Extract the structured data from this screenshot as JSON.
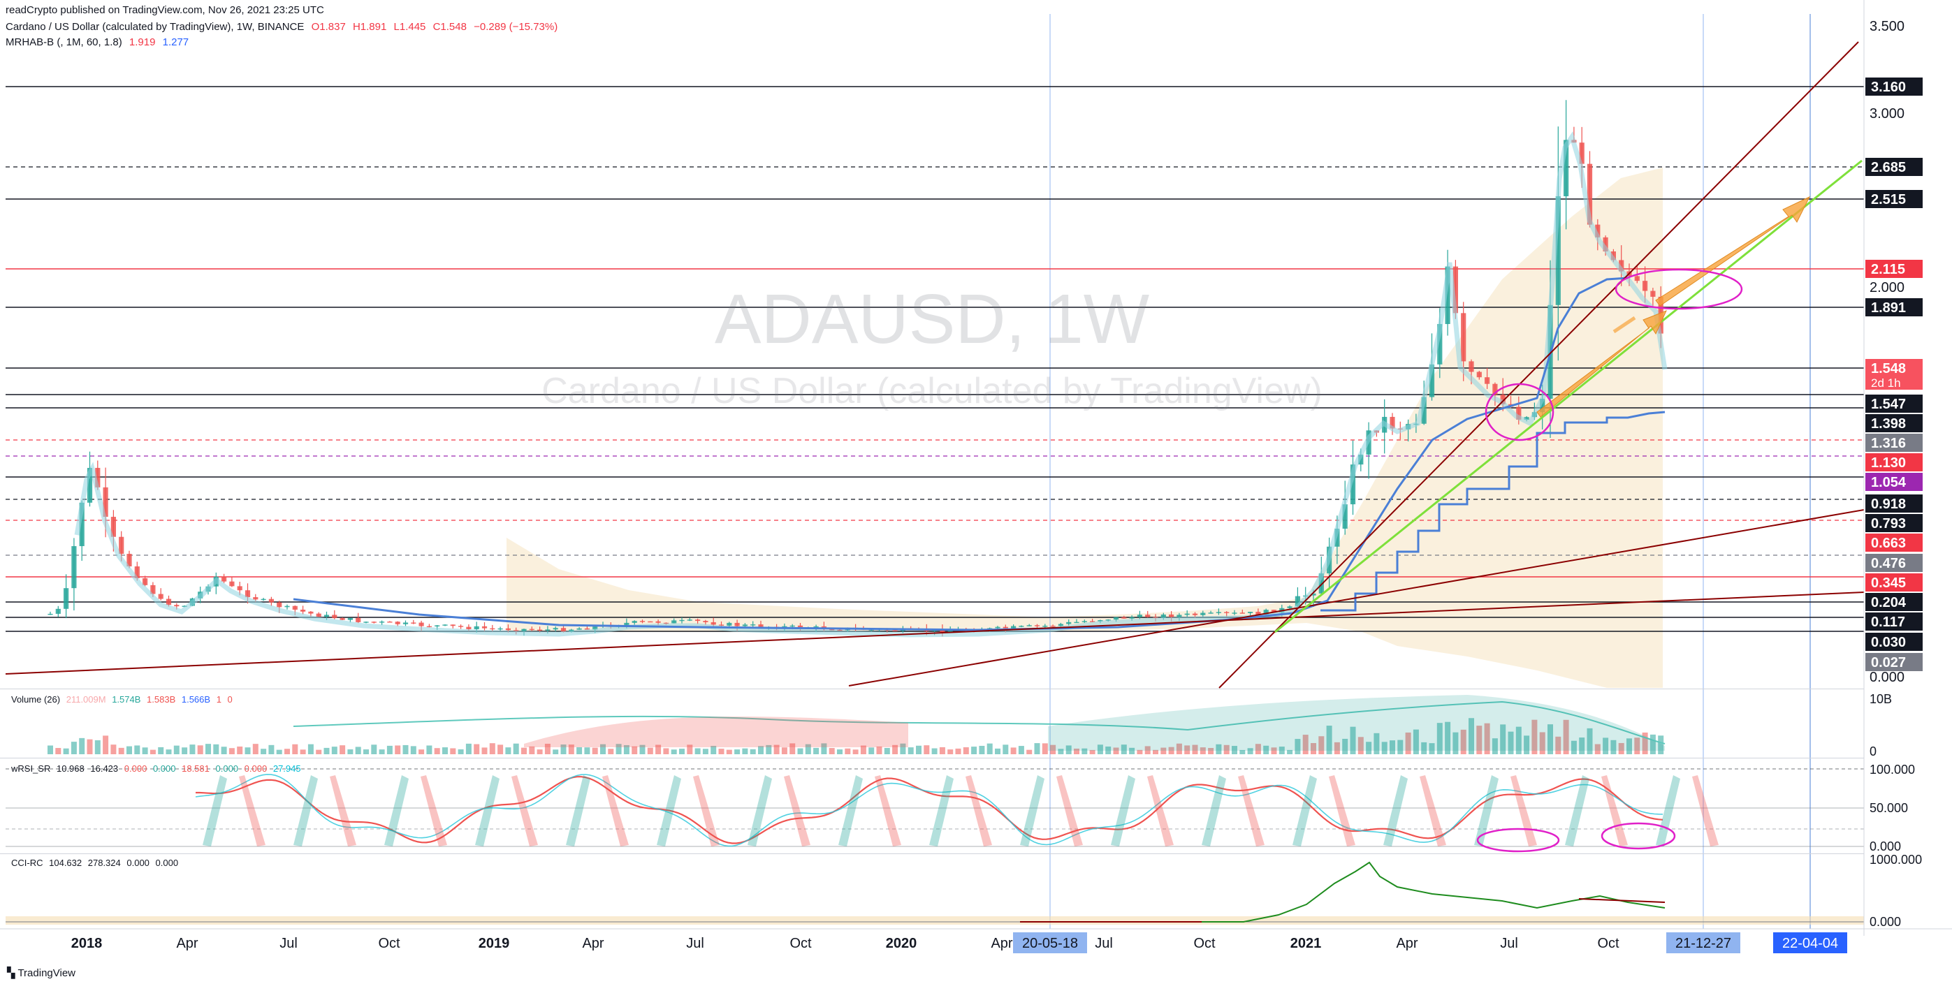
{
  "header": {
    "published": "readCrypto published on TradingView.com, Nov 26, 2021 23:25 UTC",
    "symbol_line": "Cardano / US Dollar (calculated by TradingView), 1W, BINANCE",
    "ohlc": {
      "o": "O1.837",
      "h": "H1.891",
      "l": "L1.445",
      "c": "C1.548",
      "chg": "−0.289 (−15.73%)"
    },
    "indicator": "MRHAB-B (, 1M, 60, 1.8)",
    "indicator_vals": [
      "1.919",
      "1.277"
    ]
  },
  "watermark": {
    "symbol": "ADAUSD, 1W",
    "name": "Cardano / US Dollar (calculated by TradingView)"
  },
  "price_axis": {
    "ticks": [
      "3.500",
      "3.000",
      "2.000",
      "0.000"
    ],
    "labels": [
      {
        "v": "3.160",
        "bg": "#131722",
        "fg": "#ffffff"
      },
      {
        "v": "2.685",
        "bg": "#131722",
        "fg": "#ffffff"
      },
      {
        "v": "2.515",
        "bg": "#131722",
        "fg": "#ffffff"
      },
      {
        "v": "2.115",
        "bg": "#f23645",
        "fg": "#ffffff"
      },
      {
        "v": "1.891",
        "bg": "#131722",
        "fg": "#ffffff"
      },
      {
        "v": "1.548",
        "sub": "2d 1h",
        "bg": "#f7525f",
        "fg": "#ffffff"
      },
      {
        "v": "1.547",
        "bg": "#131722",
        "fg": "#ffffff"
      },
      {
        "v": "1.398",
        "bg": "#131722",
        "fg": "#ffffff"
      },
      {
        "v": "1.316",
        "bg": "#787b86",
        "fg": "#ffffff"
      },
      {
        "v": "1.130",
        "bg": "#f23645",
        "fg": "#ffffff"
      },
      {
        "v": "1.054",
        "bg": "#9c27b0",
        "fg": "#ffffff"
      },
      {
        "v": "0.918",
        "bg": "#131722",
        "fg": "#ffffff"
      },
      {
        "v": "0.793",
        "bg": "#131722",
        "fg": "#ffffff"
      },
      {
        "v": "0.663",
        "bg": "#f23645",
        "fg": "#ffffff"
      },
      {
        "v": "0.476",
        "bg": "#787b86",
        "fg": "#ffffff"
      },
      {
        "v": "0.345",
        "bg": "#f23645",
        "fg": "#ffffff"
      },
      {
        "v": "0.204",
        "bg": "#131722",
        "fg": "#ffffff"
      },
      {
        "v": "0.117",
        "bg": "#131722",
        "fg": "#ffffff"
      },
      {
        "v": "0.030",
        "bg": "#131722",
        "fg": "#ffffff"
      },
      {
        "v": "0.027",
        "bg": "#787b86",
        "fg": "#ffffff"
      }
    ]
  },
  "time_axis": {
    "ticks": [
      "2018",
      "Apr",
      "Jul",
      "Oct",
      "2019",
      "Apr",
      "Jul",
      "Oct",
      "2020",
      "Apr",
      "Jul",
      "Oct",
      "2021",
      "Apr",
      "Jul",
      "Oct"
    ],
    "bold": [
      "2018",
      "2019",
      "2020",
      "2021"
    ],
    "markers": [
      "20-05-18",
      "21-12-27",
      "22-04-04"
    ]
  },
  "volume_pane": {
    "label": "Volume (26)",
    "vals": [
      "211.009M",
      "1.574B",
      "1.583B",
      "1.566B",
      "1",
      "0"
    ],
    "axis": [
      "10B",
      "0"
    ]
  },
  "rsi_pane": {
    "label": "wRSI_SR",
    "vals": [
      "10.968",
      "16.423",
      "0.000",
      "0.000",
      "18.581",
      "0.000",
      "0.000",
      "27.945"
    ],
    "axis": [
      "100.000",
      "50.000",
      "0.000"
    ]
  },
  "cci_pane": {
    "label": "CCI-RC",
    "vals": [
      "104.632",
      "278.324",
      "0.000",
      "0.000"
    ],
    "axis": [
      "1000.000",
      "0.000"
    ]
  },
  "footer": {
    "logo": "TradingView"
  },
  "colors": {
    "up": "#26a69a",
    "down": "#ef5350",
    "ha_up": "#8fd3e0",
    "ha_down": "#f4a582",
    "band": "#f5deb3",
    "green_line": "#7ee03a",
    "dark_red": "#8b0000",
    "blue": "#4a7fd6",
    "orange": "#f7a23b",
    "magenta": "#e020c8"
  },
  "chart_data": {
    "type": "candlestick",
    "title": "ADAUSD, 1W",
    "x_range": [
      "2017-11",
      "2022-04"
    ],
    "ylim": [
      0,
      3.5
    ],
    "scale": "log-like",
    "horizontal_levels": [
      3.16,
      2.685,
      2.515,
      2.115,
      1.891,
      1.547,
      1.398,
      1.316,
      1.13,
      1.054,
      0.918,
      0.793,
      0.663,
      0.476,
      0.345,
      0.204,
      0.117,
      0.03
    ],
    "last_close": 1.548,
    "key_points": [
      {
        "x": "2018-01",
        "y": 1.33
      },
      {
        "x": "2019-01",
        "y": 0.04
      },
      {
        "x": "2020-01",
        "y": 0.035
      },
      {
        "x": "2021-01",
        "y": 0.17
      },
      {
        "x": "2021-05",
        "y": 2.4
      },
      {
        "x": "2021-09",
        "y": 3.1
      },
      {
        "x": "2021-11",
        "y": 1.548
      }
    ]
  }
}
